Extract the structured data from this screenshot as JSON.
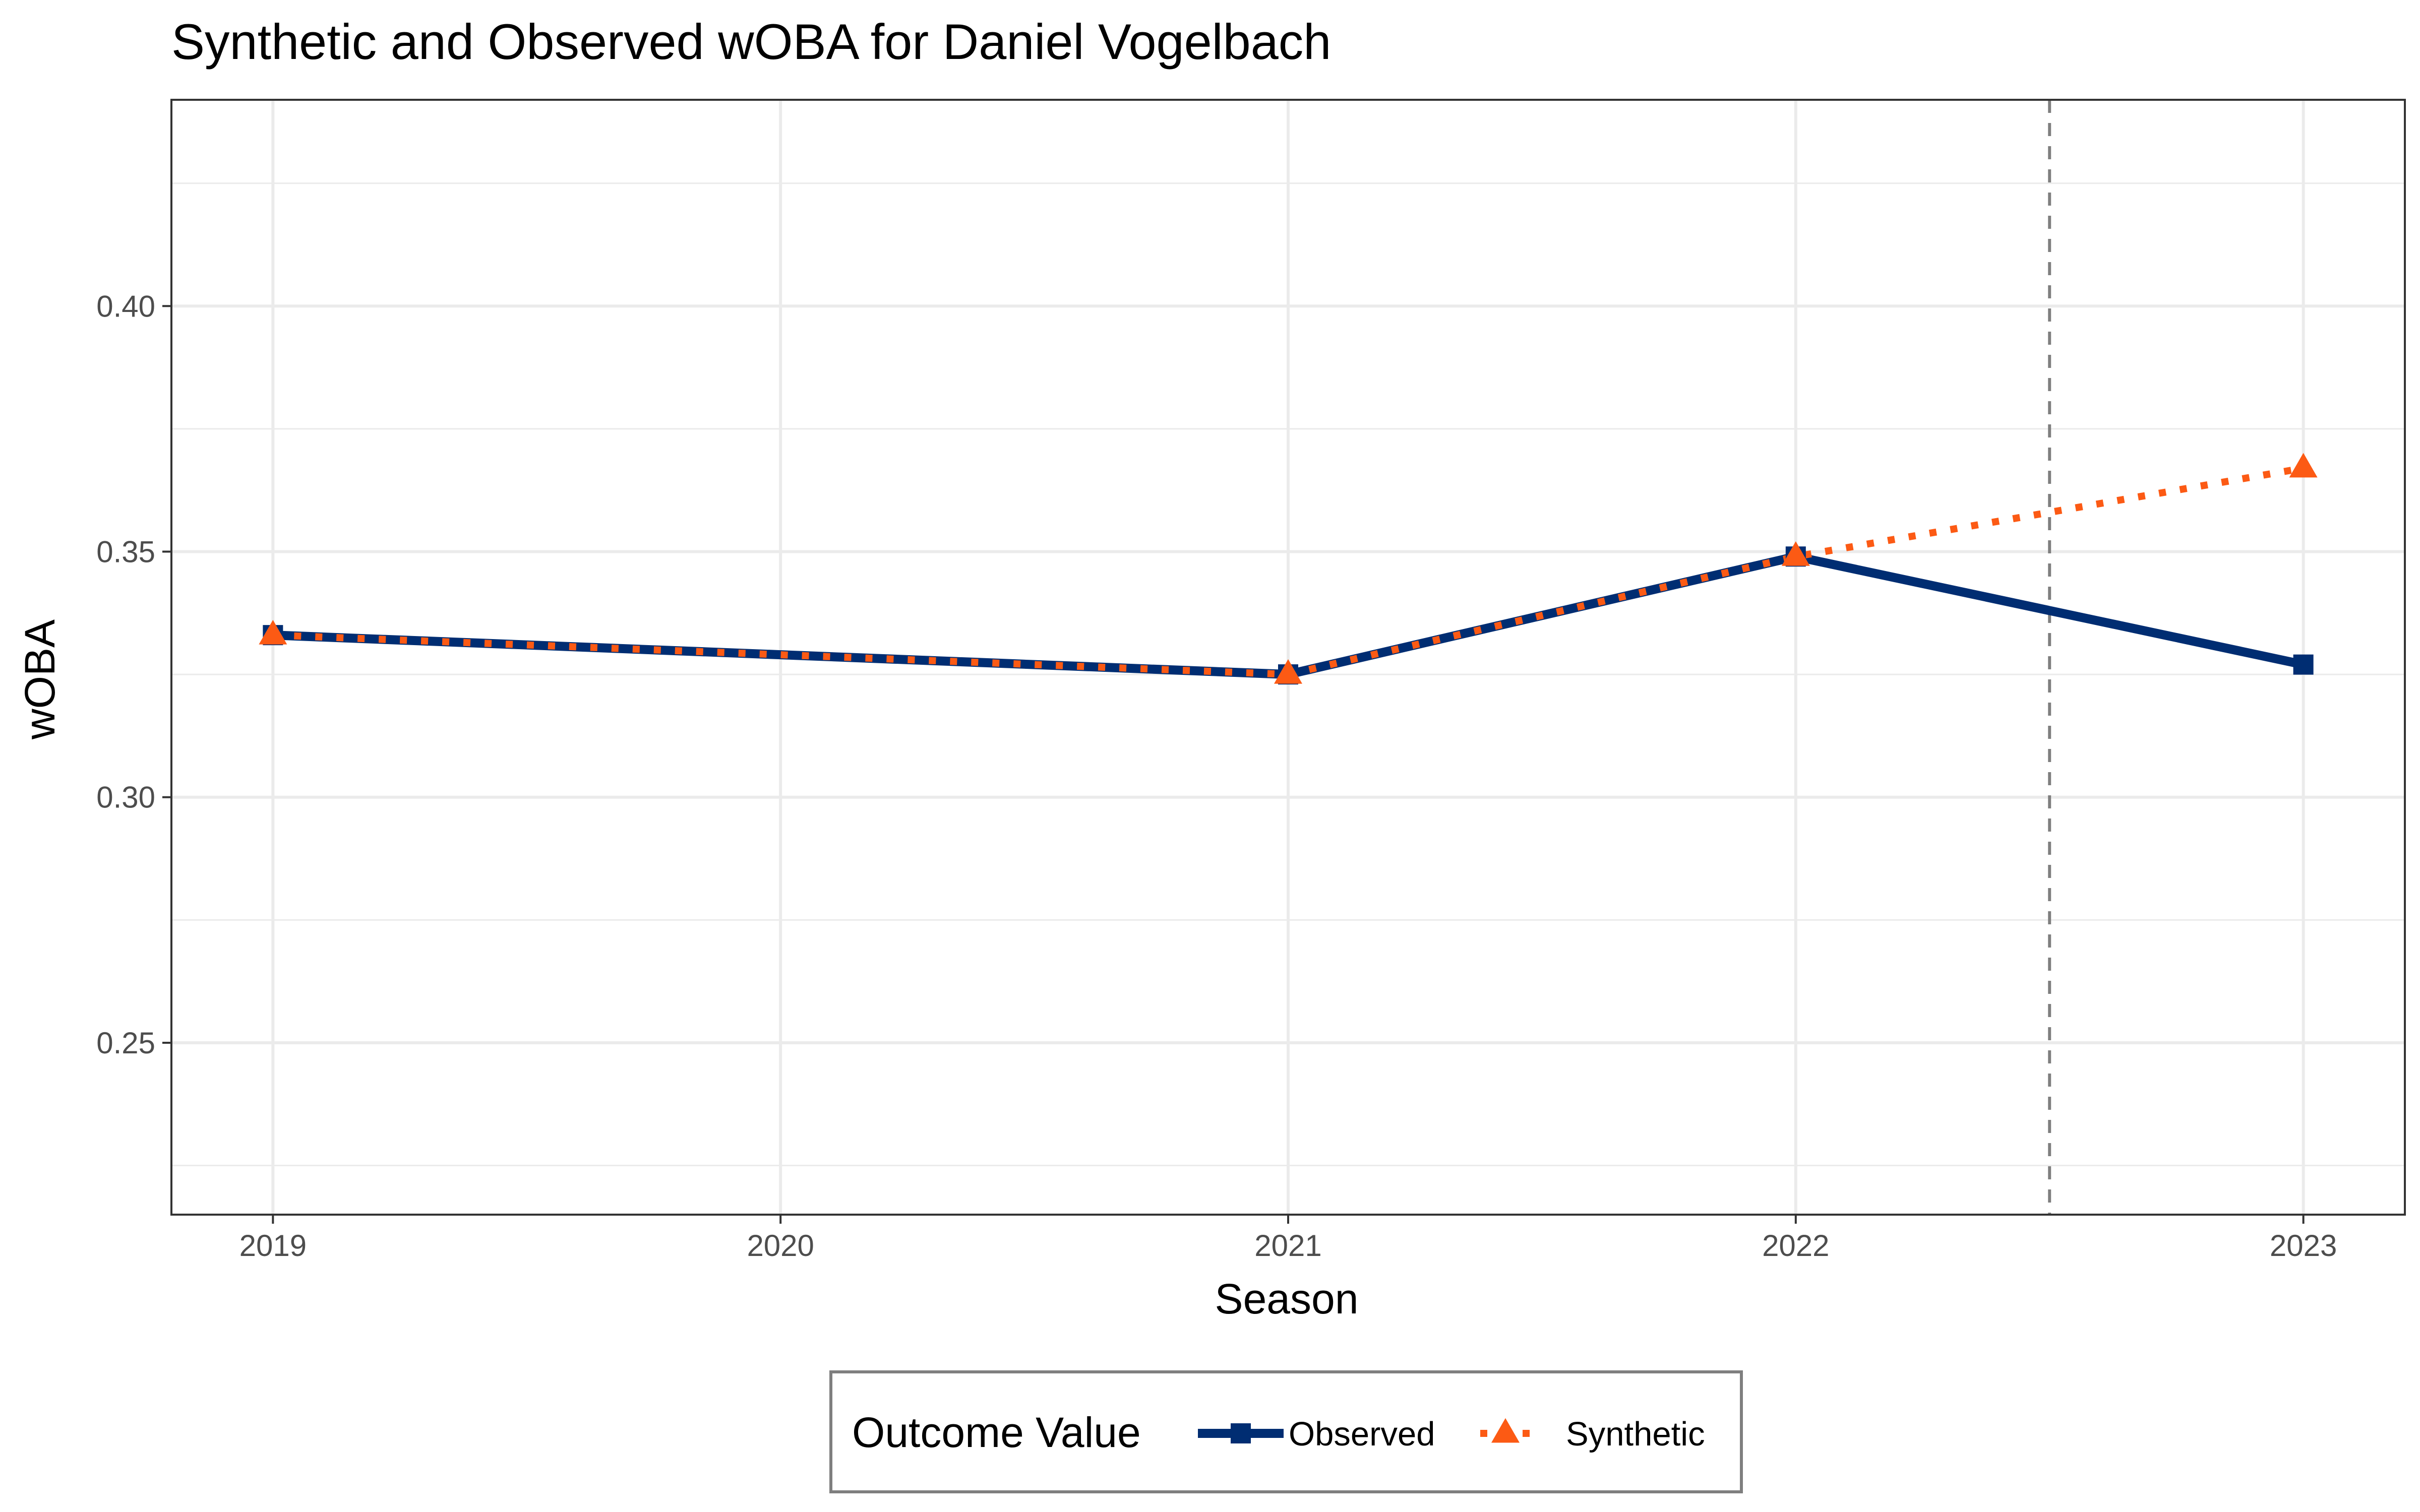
{
  "chart_data": {
    "type": "line",
    "title": "Synthetic and Observed wOBA for Daniel Vogelbach",
    "xlabel": "Season",
    "ylabel": "wOBA",
    "x": [
      2019,
      2020,
      2021,
      2022,
      2023
    ],
    "xlim": [
      2018.8,
      2023.2
    ],
    "ylim": [
      0.215,
      0.442
    ],
    "y_major_ticks": [
      0.25,
      0.3,
      0.35,
      0.4
    ],
    "y_tick_labels": [
      "0.25",
      "0.30",
      "0.35",
      "0.40"
    ],
    "y_minor_ticks": [
      0.225,
      0.275,
      0.325,
      0.375,
      0.425
    ],
    "x_tick_labels": [
      "2019",
      "2020",
      "2021",
      "2022",
      "2023"
    ],
    "grid": true,
    "treatment_line": {
      "x": 2022.5,
      "style": "dashed",
      "color": "#7f7f7f"
    },
    "legend": {
      "title": "Outcome Value",
      "position": "bottom"
    },
    "series": [
      {
        "name": "Observed",
        "x": [
          2019,
          2020,
          2021,
          2022,
          2023
        ],
        "values": [
          0.333,
          0.329,
          0.325,
          0.349,
          0.327
        ],
        "marker_x": [
          2019,
          2021,
          2022,
          2023
        ],
        "marker_values": [
          0.333,
          0.325,
          0.349,
          0.327
        ],
        "color": "#002D72",
        "line_style": "solid",
        "marker": "square"
      },
      {
        "name": "Synthetic",
        "x": [
          2019,
          2020,
          2021,
          2022,
          2023
        ],
        "values": [
          0.333,
          0.329,
          0.325,
          0.349,
          0.367
        ],
        "marker_x": [
          2019,
          2021,
          2022,
          2023
        ],
        "marker_values": [
          0.333,
          0.325,
          0.349,
          0.367
        ],
        "color": "#FC5A14",
        "line_style": "dotted",
        "marker": "triangle"
      }
    ]
  }
}
